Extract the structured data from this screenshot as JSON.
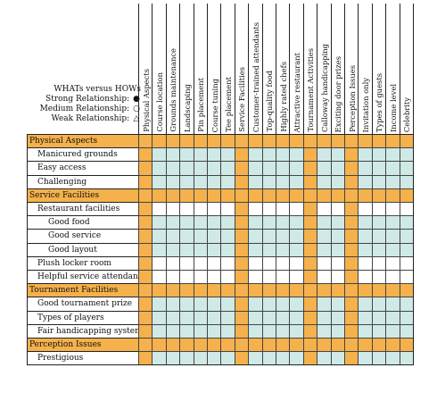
{
  "legend": {
    "title": "WHATs versus HOWs",
    "items": [
      {
        "label": "Strong Relationship:",
        "symbol": "●"
      },
      {
        "label": "Medium Relationship:",
        "symbol": "○"
      },
      {
        "label": "Weak Relationship:",
        "symbol": "△"
      }
    ]
  },
  "columns": [
    {
      "label": "Physical Aspects",
      "type": "cat"
    },
    {
      "label": "Course location",
      "type": "sub"
    },
    {
      "label": "Grounds maintenance",
      "type": "sub"
    },
    {
      "label": "Landscaping",
      "type": "sub"
    },
    {
      "label": "Pin placement",
      "type": "sub"
    },
    {
      "label": "Course tuning",
      "type": "sub"
    },
    {
      "label": "Tee placement",
      "type": "sub"
    },
    {
      "label": "Service Facilities",
      "type": "cat"
    },
    {
      "label": "Customer-trained attendants",
      "type": "sub"
    },
    {
      "label": "Top-quality food",
      "type": "sub"
    },
    {
      "label": "Highly rated chefs",
      "type": "sub"
    },
    {
      "label": "Attractive restaurant",
      "type": "sub"
    },
    {
      "label": "Tournament Activities",
      "type": "cat"
    },
    {
      "label": "Calloway handicapping",
      "type": "sub"
    },
    {
      "label": "Exciting door prizes",
      "type": "sub"
    },
    {
      "label": "Perception Issues",
      "type": "cat"
    },
    {
      "label": "Invitation only",
      "type": "sub"
    },
    {
      "label": "Types of guests",
      "type": "sub"
    },
    {
      "label": "Income level",
      "type": "sub"
    },
    {
      "label": "Celebrity",
      "type": "sub"
    }
  ],
  "rows": [
    {
      "label": "Physical Aspects",
      "level": "cat"
    },
    {
      "label": "Manicured grounds",
      "level": "l1"
    },
    {
      "label": "Easy access",
      "level": "l1"
    },
    {
      "label": "Challenging",
      "level": "l1"
    },
    {
      "label": "Service Facilities",
      "level": "cat"
    },
    {
      "label": "Restaurant facilities",
      "level": "l1"
    },
    {
      "label": "Good food",
      "level": "l2"
    },
    {
      "label": "Good service",
      "level": "l2"
    },
    {
      "label": "Good layout",
      "level": "l2"
    },
    {
      "label": "Plush locker room",
      "level": "l1"
    },
    {
      "label": "Helpful service attendants",
      "level": "l1"
    },
    {
      "label": "Tournament Facilities",
      "level": "cat"
    },
    {
      "label": "Good tournament prize",
      "level": "l1"
    },
    {
      "label": "Types of players",
      "level": "l1"
    },
    {
      "label": "Fair handicapping system",
      "level": "l1"
    },
    {
      "label": "Perception Issues",
      "level": "cat"
    },
    {
      "label": "Prestigious",
      "level": "l1"
    }
  ],
  "colors": {
    "category": "#f5b14c",
    "relationship": "#cfe9e6",
    "empty": "#ffffff"
  }
}
